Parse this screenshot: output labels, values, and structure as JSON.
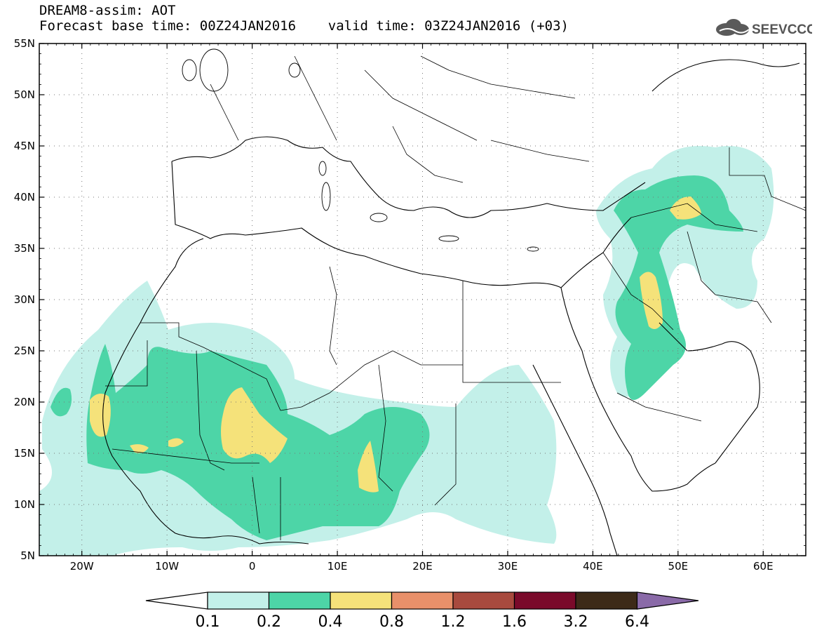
{
  "header": {
    "model_line": "DREAM8-assim: AOT",
    "time_line": "Forecast base time: 00Z24JAN2016    valid time: 03Z24JAN2016 (+03)",
    "logo_text": "SEEVCCC"
  },
  "map": {
    "lon_range": [
      -25,
      65
    ],
    "lat_range": [
      5,
      55
    ],
    "lat_ticks": [
      "55N",
      "50N",
      "45N",
      "40N",
      "35N",
      "30N",
      "25N",
      "20N",
      "15N",
      "10N",
      "5N"
    ],
    "lon_ticks": [
      "20W",
      "10W",
      "0",
      "10E",
      "20E",
      "30E",
      "40E",
      "50E",
      "60E"
    ],
    "variable": "AOT"
  },
  "colorbar": {
    "labels": [
      "0.1",
      "0.2",
      "0.4",
      "0.8",
      "1.2",
      "1.6",
      "3.2",
      "6.4"
    ],
    "colors": [
      "#ffffff",
      "#c3f0e9",
      "#4dd5a7",
      "#f5e27a",
      "#e8906a",
      "#a84a3e",
      "#7a0a2a",
      "#3d2a18",
      "#8a6aa8"
    ]
  },
  "legend_colors": {
    "lt02": "#c3f0e9",
    "lt04": "#4dd5a7",
    "lt08": "#f5e27a"
  }
}
